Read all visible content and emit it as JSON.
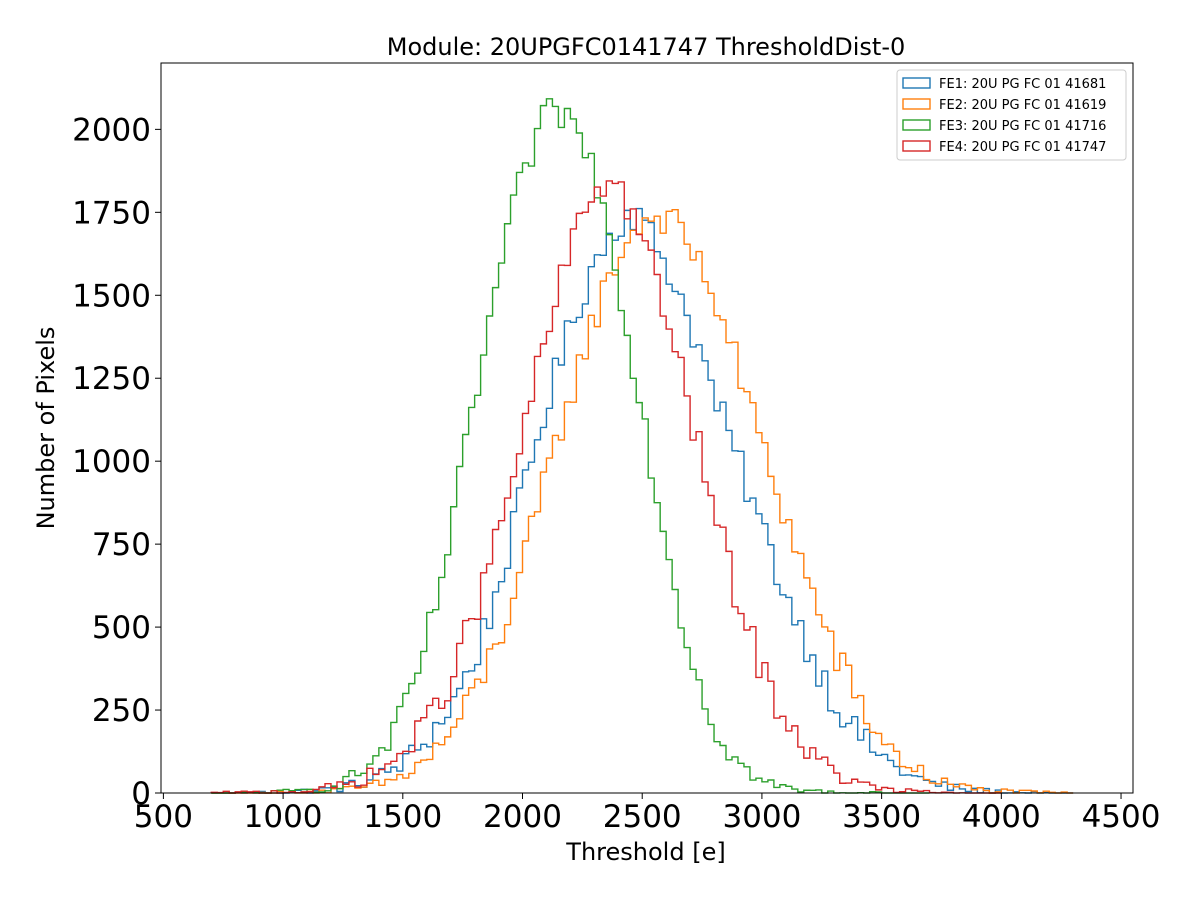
{
  "chart_data": {
    "type": "histogram",
    "title": "Module: 20UPGFC0141747 ThresholdDist-0",
    "xlabel": "Threshold [e]",
    "ylabel": "Number of Pixels",
    "xlim": [
      490,
      4550
    ],
    "ylim": [
      0,
      2200
    ],
    "xticks": [
      500,
      1000,
      1500,
      2000,
      2500,
      3000,
      3500,
      4000,
      4500
    ],
    "yticks": [
      0,
      250,
      500,
      750,
      1000,
      1250,
      1500,
      1750,
      2000
    ],
    "bin_width": 25,
    "grid": false,
    "legend_position": "top-right",
    "series": [
      {
        "name": "FE1: 20U PG FC 01 41681",
        "color": "#1f77b4",
        "x": [
          700,
          800,
          900,
          1000,
          1100,
          1200,
          1300,
          1400,
          1500,
          1600,
          1700,
          1800,
          1900,
          2000,
          2100,
          2200,
          2300,
          2400,
          2450,
          2500,
          2600,
          2700,
          2800,
          2900,
          3000,
          3100,
          3200,
          3300,
          3400,
          3500,
          3600,
          3700,
          3800,
          3900,
          4000,
          4100,
          4200,
          4300
        ],
        "y": [
          0,
          0,
          1,
          3,
          6,
          12,
          25,
          50,
          90,
          160,
          260,
          400,
          620,
          900,
          1170,
          1400,
          1600,
          1720,
          1760,
          1720,
          1600,
          1420,
          1200,
          1000,
          800,
          600,
          430,
          280,
          180,
          110,
          60,
          30,
          15,
          7,
          3,
          1,
          0,
          0
        ]
      },
      {
        "name": "FE2: 20U PG FC 01 41619",
        "color": "#ff7f0e",
        "x": [
          700,
          800,
          900,
          1000,
          1100,
          1200,
          1300,
          1400,
          1500,
          1600,
          1700,
          1800,
          1900,
          2000,
          2100,
          2200,
          2300,
          2400,
          2500,
          2600,
          2700,
          2800,
          2900,
          3000,
          3100,
          3200,
          3300,
          3400,
          3500,
          3600,
          3700,
          3800,
          3900,
          4000,
          4100,
          4200,
          4300
        ],
        "y": [
          0,
          0,
          0,
          1,
          3,
          6,
          12,
          25,
          50,
          100,
          180,
          300,
          460,
          680,
          950,
          1200,
          1430,
          1620,
          1730,
          1740,
          1650,
          1500,
          1280,
          1050,
          830,
          620,
          430,
          280,
          160,
          90,
          45,
          22,
          10,
          5,
          2,
          1,
          0
        ]
      },
      {
        "name": "FE3: 20U PG FC 01 41716",
        "color": "#2ca02c",
        "x": [
          700,
          800,
          900,
          1000,
          1100,
          1200,
          1300,
          1400,
          1500,
          1600,
          1700,
          1800,
          1900,
          2000,
          2100,
          2150,
          2200,
          2300,
          2400,
          2500,
          2600,
          2700,
          2800,
          2900,
          3000,
          3100,
          3200,
          3300,
          3400,
          3500,
          3600,
          3700
        ],
        "y": [
          0,
          0,
          1,
          3,
          8,
          20,
          50,
          110,
          230,
          450,
          780,
          1180,
          1560,
          1860,
          2040,
          2060,
          2030,
          1880,
          1560,
          1150,
          750,
          420,
          200,
          90,
          35,
          14,
          5,
          2,
          1,
          0,
          0,
          0
        ]
      },
      {
        "name": "FE4: 20U PG FC 01 41747",
        "color": "#d62728",
        "x": [
          700,
          800,
          900,
          1000,
          1100,
          1200,
          1300,
          1400,
          1500,
          1600,
          1700,
          1800,
          1900,
          2000,
          2100,
          2200,
          2300,
          2350,
          2400,
          2500,
          2600,
          2700,
          2800,
          2900,
          3000,
          3100,
          3200,
          3300,
          3400,
          3500,
          3600,
          3700,
          3800,
          3900,
          4000
        ],
        "y": [
          0,
          1,
          2,
          4,
          8,
          16,
          32,
          65,
          120,
          210,
          350,
          540,
          780,
          1070,
          1380,
          1640,
          1820,
          1850,
          1830,
          1680,
          1440,
          1150,
          850,
          580,
          370,
          220,
          120,
          60,
          28,
          12,
          5,
          2,
          1,
          0,
          0
        ]
      }
    ]
  }
}
